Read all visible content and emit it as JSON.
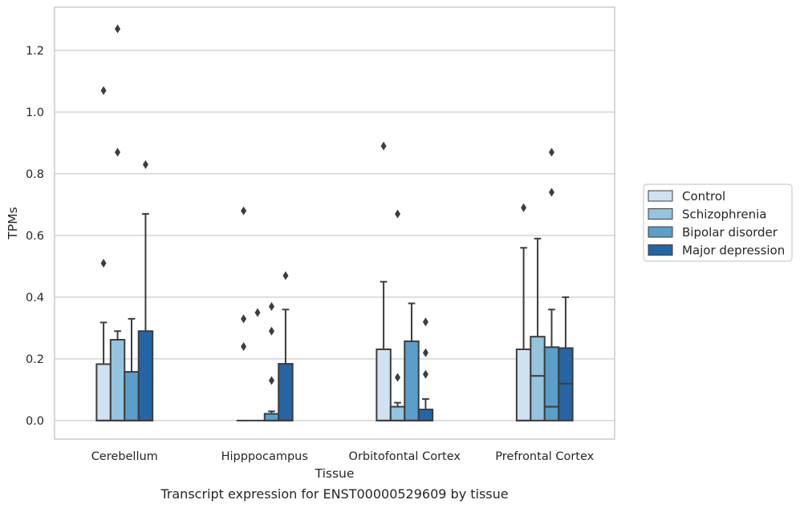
{
  "caption": "Transcript expression for ENST00000529609 by tissue",
  "chart_data": {
    "type": "box",
    "title": "",
    "xlabel": "Tissue",
    "ylabel": "TPMs",
    "ylim": [
      -0.06,
      1.34
    ],
    "yticks": [
      0.0,
      0.2,
      0.4,
      0.6,
      0.8,
      1.0,
      1.2
    ],
    "ytick_labels": [
      "0.0",
      "0.2",
      "0.4",
      "0.6",
      "0.8",
      "1.0",
      "1.2"
    ],
    "grid": "horizontal",
    "legend_position": "right",
    "categories": [
      "Cerebellum",
      "Hipppocampus",
      "Orbitofontal Cortex",
      "Prefrontal Cortex"
    ],
    "series": [
      {
        "name": "Control",
        "color": "#d0e1f2",
        "boxes": [
          {
            "q1": 0.0,
            "median": 0.0,
            "q3": 0.183,
            "whisker_low": 0.0,
            "whisker_high": 0.318,
            "outliers": [
              0.51,
              1.07
            ]
          },
          {
            "q1": 0.0,
            "median": 0.0,
            "q3": 0.0,
            "whisker_low": 0.0,
            "whisker_high": 0.0,
            "outliers": [
              0.24,
              0.33,
              0.68
            ]
          },
          {
            "q1": 0.0,
            "median": 0.0,
            "q3": 0.231,
            "whisker_low": 0.0,
            "whisker_high": 0.45,
            "outliers": [
              0.89
            ]
          },
          {
            "q1": 0.0,
            "median": 0.0,
            "q3": 0.231,
            "whisker_low": 0.0,
            "whisker_high": 0.56,
            "outliers": [
              0.69
            ]
          }
        ]
      },
      {
        "name": "Schizophrenia",
        "color": "#94c4df",
        "boxes": [
          {
            "q1": 0.0,
            "median": 0.0,
            "q3": 0.262,
            "whisker_low": 0.0,
            "whisker_high": 0.29,
            "outliers": [
              0.87,
              1.27
            ]
          },
          {
            "q1": 0.0,
            "median": 0.0,
            "q3": 0.0,
            "whisker_low": 0.0,
            "whisker_high": 0.0,
            "outliers": [
              0.35
            ]
          },
          {
            "q1": 0.0,
            "median": 0.0,
            "q3": 0.045,
            "whisker_low": 0.0,
            "whisker_high": 0.058,
            "outliers": [
              0.14,
              0.67
            ]
          },
          {
            "q1": 0.0,
            "median": 0.145,
            "q3": 0.272,
            "whisker_low": 0.0,
            "whisker_high": 0.59,
            "outliers": []
          }
        ]
      },
      {
        "name": "Bipolar disorder",
        "color": "#5a9ec9",
        "boxes": [
          {
            "q1": 0.0,
            "median": 0.0,
            "q3": 0.158,
            "whisker_low": 0.0,
            "whisker_high": 0.33,
            "outliers": []
          },
          {
            "q1": 0.0,
            "median": 0.0,
            "q3": 0.022,
            "whisker_low": 0.0,
            "whisker_high": 0.03,
            "outliers": [
              0.13,
              0.29,
              0.37
            ]
          },
          {
            "q1": 0.0,
            "median": 0.0,
            "q3": 0.257,
            "whisker_low": 0.0,
            "whisker_high": 0.38,
            "outliers": []
          },
          {
            "q1": 0.0,
            "median": 0.045,
            "q3": 0.238,
            "whisker_low": 0.0,
            "whisker_high": 0.36,
            "outliers": [
              0.74,
              0.87
            ]
          }
        ]
      },
      {
        "name": "Major depression",
        "color": "#2665a4",
        "boxes": [
          {
            "q1": 0.0,
            "median": 0.0,
            "q3": 0.29,
            "whisker_low": 0.0,
            "whisker_high": 0.67,
            "outliers": [
              0.83
            ]
          },
          {
            "q1": 0.0,
            "median": 0.0,
            "q3": 0.184,
            "whisker_low": 0.0,
            "whisker_high": 0.36,
            "outliers": [
              0.47
            ]
          },
          {
            "q1": 0.0,
            "median": 0.0,
            "q3": 0.036,
            "whisker_low": 0.0,
            "whisker_high": 0.07,
            "outliers": [
              0.15,
              0.22,
              0.32
            ]
          },
          {
            "q1": 0.0,
            "median": 0.12,
            "q3": 0.235,
            "whisker_low": 0.0,
            "whisker_high": 0.4,
            "outliers": []
          }
        ]
      }
    ],
    "colors": {
      "grid": "#cccccc",
      "frame": "#cccccc",
      "box_edge": "#3d3d3d"
    }
  }
}
